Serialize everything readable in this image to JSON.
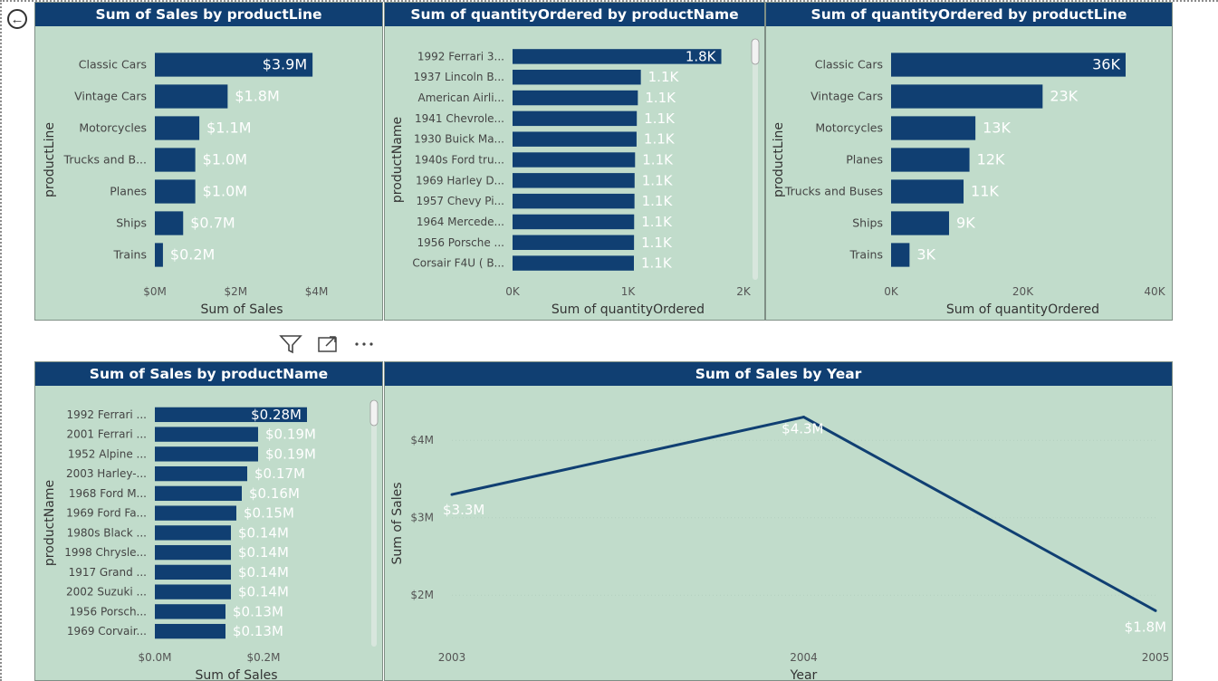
{
  "nav": {
    "back_icon": "arrow-left-circle-icon"
  },
  "visual_header": {
    "icons": [
      "filter-icon",
      "focus-mode-icon",
      "more-options-icon"
    ]
  },
  "colors": {
    "bar": "#103f72",
    "panel_bg": "#c1dccb",
    "title_bg": "#103f72",
    "label_light": "#ffffff"
  },
  "charts": {
    "sales_by_productline": {
      "title": "Sum of Sales by productLine"
    },
    "qty_by_productname": {
      "title": "Sum of quantityOrdered by productName"
    },
    "qty_by_productline": {
      "title": "Sum of quantityOrdered by productLine"
    },
    "sales_by_productname": {
      "title": "Sum of Sales by productName"
    },
    "sales_by_year": {
      "title": "Sum of Sales by Year"
    }
  },
  "chart_data": [
    {
      "id": "sales_by_productline",
      "type": "bar",
      "orientation": "horizontal",
      "title": "Sum of Sales by productLine",
      "xlabel": "Sum of Sales",
      "ylabel": "productLine",
      "categories": [
        "Classic Cars",
        "Vintage Cars",
        "Motorcycles",
        "Trucks and B...",
        "Planes",
        "Ships",
        "Trains"
      ],
      "values": [
        3.9,
        1.8,
        1.1,
        1.0,
        1.0,
        0.7,
        0.2
      ],
      "value_labels": [
        "$3.9M",
        "$1.8M",
        "$1.1M",
        "$1.0M",
        "$1.0M",
        "$0.7M",
        "$0.2M"
      ],
      "xlim": [
        0,
        4.3
      ],
      "x_ticks": [
        0,
        2,
        4
      ],
      "x_tick_labels": [
        "$0M",
        "$2M",
        "$4M"
      ],
      "unit": "millions USD"
    },
    {
      "id": "qty_by_productname",
      "type": "bar",
      "orientation": "horizontal",
      "title": "Sum of quantityOrdered by productName",
      "xlabel": "Sum of quantityOrdered",
      "ylabel": "productName",
      "categories": [
        "1992 Ferrari 3...",
        "1937 Lincoln B...",
        "American Airli...",
        "1941 Chevrole...",
        "1930 Buick Ma...",
        "1940s Ford tru...",
        "1969 Harley D...",
        "1957 Chevy Pi...",
        "1964 Mercede...",
        "1956 Porsche ...",
        "Corsair F4U ( B..."
      ],
      "values": [
        1808,
        1111,
        1085,
        1076,
        1074,
        1061,
        1057,
        1056,
        1053,
        1052,
        1051
      ],
      "value_labels": [
        "1.8K",
        "1.1K",
        "1.1K",
        "1.1K",
        "1.1K",
        "1.1K",
        "1.1K",
        "1.1K",
        "1.1K",
        "1.1K",
        "1.1K"
      ],
      "xlim": [
        0,
        2000
      ],
      "x_ticks": [
        0,
        1000,
        2000
      ],
      "x_tick_labels": [
        "0K",
        "1K",
        "2K"
      ],
      "scrollable": true
    },
    {
      "id": "qty_by_productline",
      "type": "bar",
      "orientation": "horizontal",
      "title": "Sum of quantityOrdered by productLine",
      "xlabel": "Sum of quantityOrdered",
      "ylabel": "productLine",
      "categories": [
        "Classic Cars",
        "Vintage Cars",
        "Motorcycles",
        "Planes",
        "Trucks and Buses",
        "Ships",
        "Trains"
      ],
      "values": [
        35600,
        23000,
        12800,
        11900,
        11000,
        8800,
        2800
      ],
      "value_labels": [
        "36K",
        "23K",
        "13K",
        "12K",
        "11K",
        "9K",
        "3K"
      ],
      "xlim": [
        0,
        40000
      ],
      "x_ticks": [
        0,
        20000,
        40000
      ],
      "x_tick_labels": [
        "0K",
        "20K",
        "40K"
      ]
    },
    {
      "id": "sales_by_productname",
      "type": "bar",
      "orientation": "horizontal",
      "title": "Sum of Sales by productName",
      "xlabel": "Sum of Sales",
      "ylabel": "productName",
      "categories": [
        "1992 Ferrari ...",
        "2001 Ferrari ...",
        "1952 Alpine ...",
        "2003 Harley-...",
        "1968 Ford M...",
        "1969 Ford Fa...",
        "1980s Black ...",
        "1998 Chrysle...",
        "1917 Grand ...",
        "2002 Suzuki ...",
        "1956 Porsch...",
        "1969 Corvair..."
      ],
      "values": [
        0.28,
        0.19,
        0.19,
        0.17,
        0.16,
        0.15,
        0.14,
        0.14,
        0.14,
        0.14,
        0.13,
        0.13
      ],
      "value_labels": [
        "$0.28M",
        "$0.19M",
        "$0.19M",
        "$0.17M",
        "$0.16M",
        "$0.15M",
        "$0.14M",
        "$0.14M",
        "$0.14M",
        "$0.14M",
        "$0.13M",
        "$0.13M"
      ],
      "xlim": [
        0,
        0.3
      ],
      "x_ticks": [
        0,
        0.2
      ],
      "x_tick_labels": [
        "$0.0M",
        "$0.2M"
      ],
      "scrollable": true
    },
    {
      "id": "sales_by_year",
      "type": "line",
      "title": "Sum of Sales by Year",
      "xlabel": "Year",
      "ylabel": "Sum of Sales",
      "x": [
        "2003",
        "2004",
        "2005"
      ],
      "values": [
        3.3,
        4.3,
        1.8
      ],
      "value_labels": [
        "$3.3M",
        "$4.3M",
        "$1.8M"
      ],
      "ylim": [
        1.5,
        4.4
      ],
      "y_ticks": [
        2,
        3,
        4
      ],
      "y_tick_labels": [
        "$2M",
        "$3M",
        "$4M"
      ]
    }
  ]
}
